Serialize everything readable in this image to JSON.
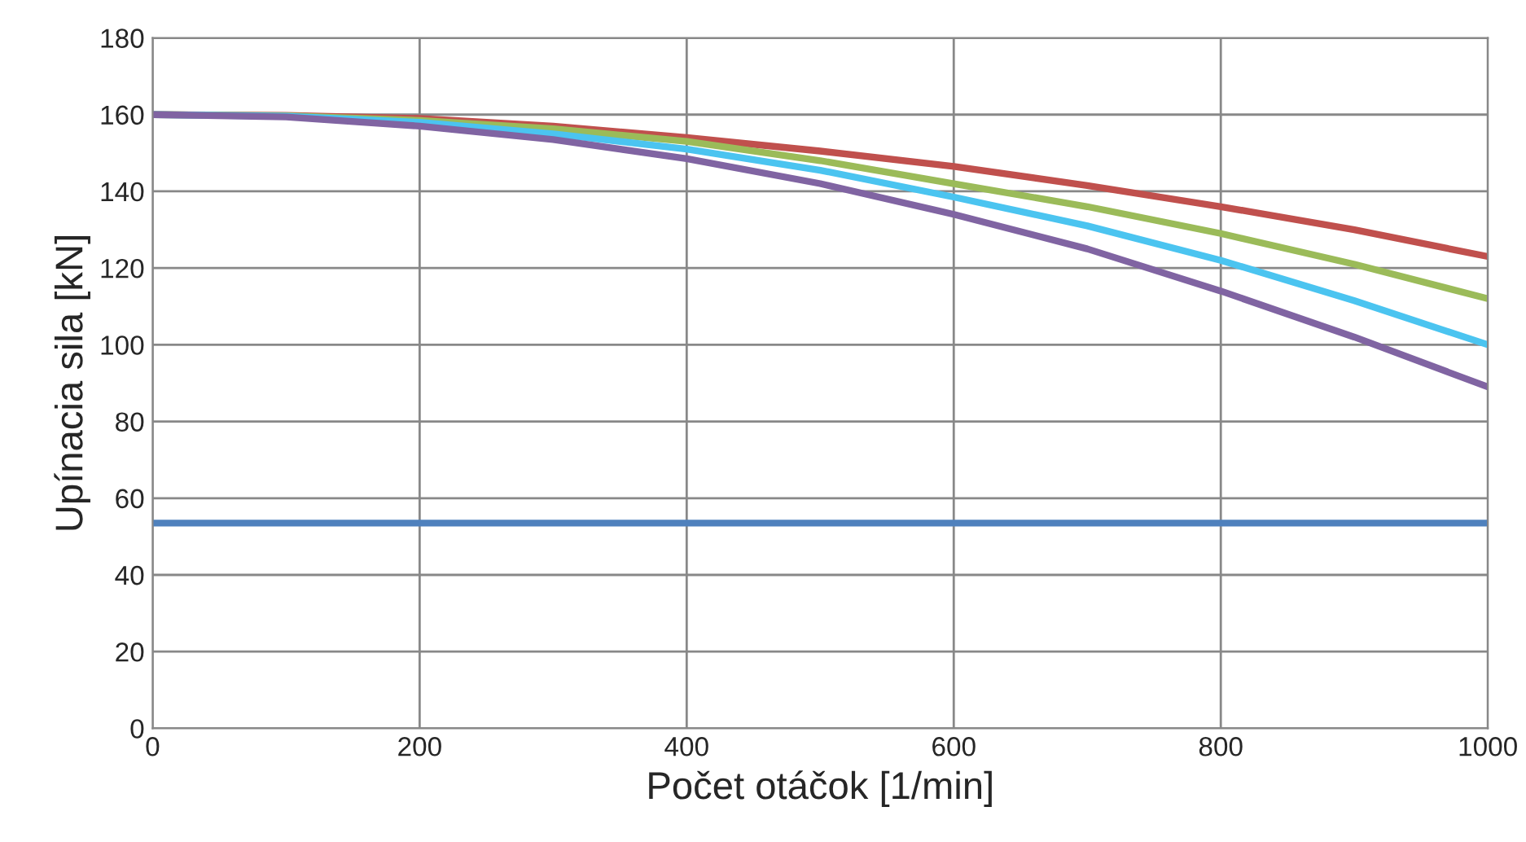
{
  "chart_data": {
    "type": "line",
    "xlabel": "Počet otáčok [1/min]",
    "ylabel": "Upínacia sila [kN]",
    "x": [
      0,
      100,
      200,
      300,
      400,
      500,
      600,
      700,
      800,
      900,
      1000
    ],
    "series": [
      {
        "color": "#4f81bd",
        "values": [
          53.5,
          53.5,
          53.5,
          53.5,
          53.5,
          53.5,
          53.5,
          53.5,
          53.5,
          53.5,
          53.5
        ]
      },
      {
        "color": "#c0504d",
        "values": [
          160,
          159.8,
          159,
          157,
          154,
          150.5,
          146.5,
          141.5,
          136,
          130,
          123
        ]
      },
      {
        "color": "#9bbb59",
        "values": [
          160,
          159.7,
          158.5,
          156.3,
          153,
          148,
          142,
          136,
          129,
          121,
          112
        ]
      },
      {
        "color": "#4bc4f0",
        "values": [
          160,
          159.6,
          158,
          155,
          151,
          145.5,
          138.5,
          131,
          122,
          111.5,
          100
        ]
      },
      {
        "color": "#8064a2",
        "values": [
          160,
          159.4,
          157,
          153.5,
          148.5,
          142,
          134,
          125,
          114,
          102,
          89
        ]
      }
    ],
    "xlim": [
      0,
      1000
    ],
    "xticks": [
      0,
      200,
      400,
      600,
      800,
      1000
    ],
    "ylim": [
      0,
      180
    ],
    "yticks": [
      0,
      20,
      40,
      60,
      80,
      100,
      120,
      140,
      160,
      180
    ],
    "grid": true,
    "marker": "none",
    "line_style": "solid"
  }
}
